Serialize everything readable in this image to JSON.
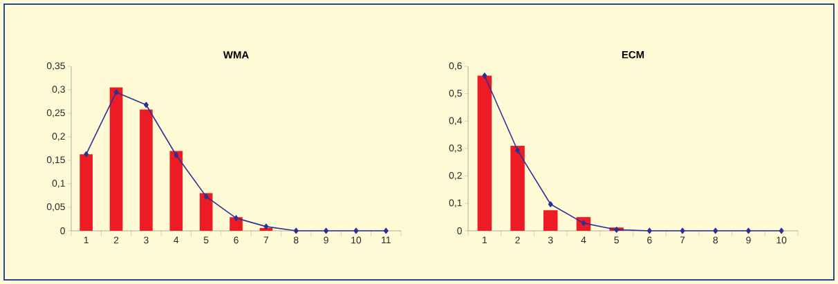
{
  "chart_data": [
    {
      "type": "bar",
      "title": "WMA",
      "categories": [
        "1",
        "2",
        "3",
        "4",
        "5",
        "6",
        "7",
        "8",
        "9",
        "10",
        "11"
      ],
      "series": [
        {
          "color": "#ed1c24",
          "values": [
            0.163,
            0.305,
            0.258,
            0.17,
            0.08,
            0.029,
            0.006,
            0,
            0,
            0,
            0
          ]
        },
        {
          "type": "line",
          "color": "#2e3192",
          "values": [
            0.163,
            0.295,
            0.268,
            0.161,
            0.073,
            0.027,
            0.009,
            0,
            0,
            0,
            0
          ]
        }
      ],
      "marker": "diamond",
      "ylim": [
        0,
        0.35
      ],
      "yticks": [
        {
          "value": 0,
          "label": "0"
        },
        {
          "value": 0.05,
          "label": "0,05"
        },
        {
          "value": 0.1,
          "label": "0,1"
        },
        {
          "value": 0.15,
          "label": "0,15"
        },
        {
          "value": 0.2,
          "label": "0,2"
        },
        {
          "value": 0.25,
          "label": "0,25"
        },
        {
          "value": 0.3,
          "label": "0,3"
        },
        {
          "value": 0.35,
          "label": "0,35"
        }
      ]
    },
    {
      "type": "bar",
      "title": "ECM",
      "categories": [
        "1",
        "2",
        "3",
        "4",
        "5",
        "6",
        "7",
        "8",
        "9",
        "10"
      ],
      "series": [
        {
          "color": "#ed1c24",
          "values": [
            0.566,
            0.31,
            0.075,
            0.05,
            0.012,
            0,
            0,
            0,
            0,
            0
          ]
        },
        {
          "type": "line",
          "color": "#2e3192",
          "values": [
            0.566,
            0.293,
            0.097,
            0.028,
            0.004,
            0,
            0,
            0,
            0,
            0
          ]
        }
      ],
      "marker": "diamond",
      "ylim": [
        0,
        0.6
      ],
      "yticks": [
        {
          "value": 0,
          "label": "0"
        },
        {
          "value": 0.1,
          "label": "0,1"
        },
        {
          "value": 0.2,
          "label": "0,2"
        },
        {
          "value": 0.3,
          "label": "0,3"
        },
        {
          "value": 0.4,
          "label": "0,4"
        },
        {
          "value": 0.5,
          "label": "0,5"
        },
        {
          "value": 0.6,
          "label": "0,6"
        }
      ]
    }
  ]
}
